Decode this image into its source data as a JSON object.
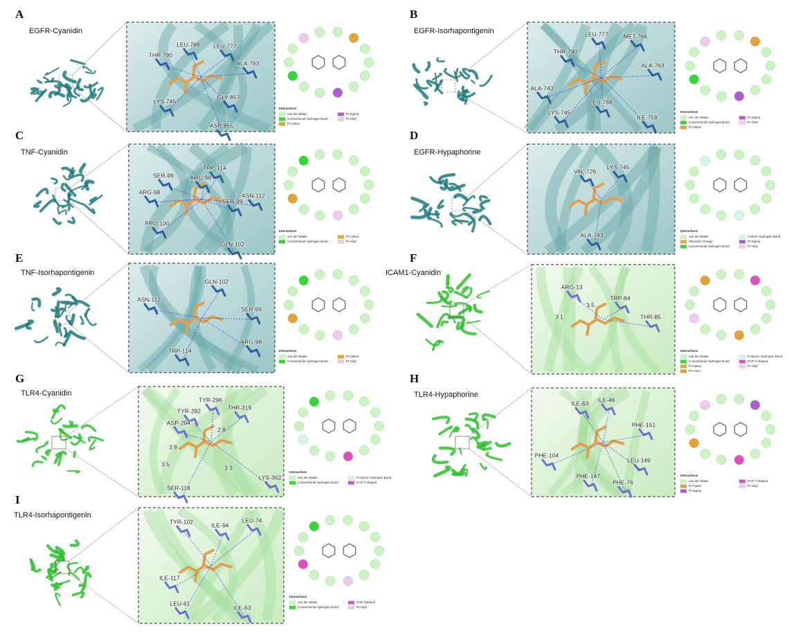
{
  "panels": [
    {
      "letter": "A",
      "title": "EGFR-Cyanidin",
      "residues": [
        "THR-790",
        "LEU-788",
        "LEU-777",
        "ALA-763",
        "LYS-745",
        "GLY-857",
        "ASP-855"
      ],
      "legend_title": "Interactions",
      "legend": [
        {
          "label": "van der Waals",
          "color": "#cdf3c4"
        },
        {
          "label": "Conventional Hydrogen Bond",
          "color": "#39d43a"
        },
        {
          "label": "Pi-Cation",
          "color": "#e8a13a"
        },
        {
          "label": "Pi-Sigma",
          "color": "#b05ad7"
        },
        {
          "label": "Pi-Alkyl",
          "color": "#f0c8f0"
        }
      ]
    },
    {
      "letter": "B",
      "title": "EGFR-Isorhapontigenin",
      "residues": [
        "LEU-777",
        "MET-766",
        "THR-790",
        "ALA-763",
        "ALA-743",
        "LEU-788",
        "LYS-745",
        "ILE-759"
      ],
      "legend_title": "Interactions",
      "legend": [
        {
          "label": "van der Waals",
          "color": "#cdf3c4"
        },
        {
          "label": "Conventional Hydrogen Bond",
          "color": "#39d43a"
        },
        {
          "label": "Pi-Cation",
          "color": "#e8a13a"
        },
        {
          "label": "Pi-Sigma",
          "color": "#b05ad7"
        },
        {
          "label": "Pi-Alkyl",
          "color": "#f0c8f0"
        }
      ]
    },
    {
      "letter": "C",
      "title": "TNF-Cyanidin",
      "residues": [
        "SER-99",
        "TRP-114",
        "ARG-98",
        "ARG-98",
        "SER-99",
        "ASN-112",
        "PRO-100",
        "GLN-102"
      ],
      "legend_title": "Interactions",
      "legend": [
        {
          "label": "van der Waals",
          "color": "#cdf3c4"
        },
        {
          "label": "Conventional Hydrogen Bond",
          "color": "#39d43a"
        },
        {
          "label": "Pi-Cation",
          "color": "#e8a13a"
        },
        {
          "label": "Pi-Alkyl",
          "color": "#f0c8f0"
        }
      ]
    },
    {
      "letter": "D",
      "title": "EGFR-Hypaphorine",
      "residues": [
        "VAL-726",
        "LYS-745",
        "ALA-743"
      ],
      "legend_title": "Interactions",
      "legend": [
        {
          "label": "van der Waals",
          "color": "#cdf3c4"
        },
        {
          "label": "Attractive Charge",
          "color": "#e8a13a"
        },
        {
          "label": "Conventional Hydrogen Bond",
          "color": "#39d43a"
        },
        {
          "label": "Carbon Hydrogen Bond",
          "color": "#d8f5e8"
        },
        {
          "label": "Pi-Sigma",
          "color": "#b05ad7"
        },
        {
          "label": "Pi-Alkyl",
          "color": "#f0c8f0"
        }
      ]
    },
    {
      "letter": "E",
      "title": "TNF-Isorhapontigenin",
      "residues": [
        "GLN-102",
        "ASN-112",
        "SER-99",
        "ARG-98",
        "TRP-114"
      ],
      "legend_title": "Interactions",
      "legend": [
        {
          "label": "van der Waals",
          "color": "#cdf3c4"
        },
        {
          "label": "Conventional Hydrogen Bond",
          "color": "#39d43a"
        },
        {
          "label": "Pi-Cation",
          "color": "#e8a13a"
        },
        {
          "label": "Pi-Alkyl",
          "color": "#f0c8f0"
        }
      ]
    },
    {
      "letter": "F",
      "title": "ICAM1-Cyanidin",
      "residues": [
        "ARG-13",
        3.5,
        "TRP-84",
        3.1,
        "THR-85"
      ],
      "legend_title": "Interactions",
      "legend": [
        {
          "label": "van der Waals",
          "color": "#cdf3c4"
        },
        {
          "label": "Conventional Hydrogen Bond",
          "color": "#39d43a"
        },
        {
          "label": "Pi-Cation",
          "color": "#e8a13a"
        },
        {
          "label": "Pi-Anion",
          "color": "#e8a13a"
        },
        {
          "label": "Pi-Donor Hydrogen Bond",
          "color": "#d8f5e8"
        },
        {
          "label": "Pi-Pi T-shaped",
          "color": "#e04fc0"
        },
        {
          "label": "Pi-Alkyl",
          "color": "#f0c8f0"
        }
      ]
    },
    {
      "letter": "G",
      "title": "TLR4-Cyanidin",
      "residues": [
        "TYR-296",
        "THR-319",
        "TYR-292",
        "ASP-294",
        2.8,
        3.9,
        3.5,
        3.3,
        "LYS-362",
        "SER-118"
      ],
      "legend_title": "Interactions",
      "legend": [
        {
          "label": "van der Waals",
          "color": "#cdf3c4"
        },
        {
          "label": "Conventional Hydrogen Bond",
          "color": "#39d43a"
        },
        {
          "label": "Pi-Donor Hydrogen Bond",
          "color": "#d8f5e8"
        },
        {
          "label": "Pi-Pi T-shaped",
          "color": "#e04fc0"
        }
      ]
    },
    {
      "letter": "H",
      "title": "TLR4-Hypaphorine",
      "residues": [
        "ILE-63",
        "ILE-46",
        "PHE-151",
        "PHE-104",
        "LEU-149",
        "PHE-147",
        "PHE-76"
      ],
      "legend_title": "Interactions",
      "legend": [
        {
          "label": "van der Waals",
          "color": "#cdf3c4"
        },
        {
          "label": "Pi-Cation",
          "color": "#e8a13a"
        },
        {
          "label": "Pi-Sigma",
          "color": "#b05ad7"
        },
        {
          "label": "Pi-Pi T-shaped",
          "color": "#e04fc0"
        },
        {
          "label": "Pi-Alkyl",
          "color": "#f0c8f0"
        }
      ]
    },
    {
      "letter": "I",
      "title": "TLR4-Isorhapontigenin",
      "residues": [
        "TYR-102",
        "ILE-94",
        "LEU-74",
        "ILE-117",
        "LEU-61",
        "ILE-63"
      ],
      "legend_title": "Interactions",
      "legend": [
        {
          "label": "van der Waals",
          "color": "#cdf3c4"
        },
        {
          "label": "Conventional Hydrogen Bond",
          "color": "#39d43a"
        },
        {
          "label": "Pi-Pi Stacked",
          "color": "#e04fc0"
        },
        {
          "label": "Pi-Alkyl",
          "color": "#f0c8f0"
        }
      ]
    }
  ]
}
